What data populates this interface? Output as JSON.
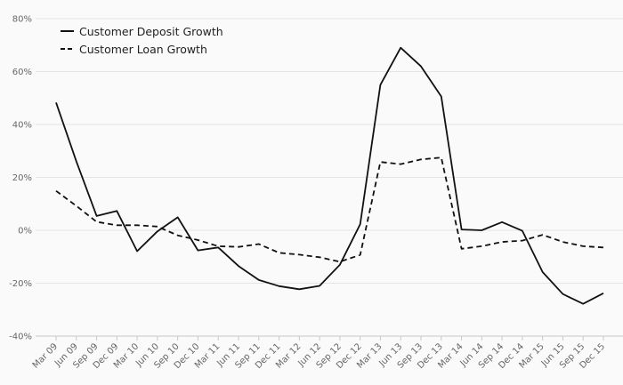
{
  "chart_data": {
    "type": "line",
    "title": "",
    "xlabel": "",
    "ylabel": "",
    "ylim": [
      -40,
      80
    ],
    "y_ticks": [
      "80%",
      "60%",
      "40%",
      "20%",
      "0%",
      "-20%",
      "-40%"
    ],
    "y_tick_values": [
      80,
      60,
      40,
      20,
      0,
      -20,
      -40
    ],
    "grid": true,
    "legend_position": "top-left",
    "categories": [
      "Mar 09",
      "Jun 09",
      "Sep 09",
      "Dec 09",
      "Mar 10",
      "Jun 10",
      "Sep 10",
      "Dec 10",
      "Mar 11",
      "Jun 11",
      "Sep 11",
      "Dec 11",
      "Mar 12",
      "Jun 12",
      "Sep 12",
      "Dec 12",
      "Mar 13",
      "Jun 13",
      "Sep 13",
      "Dec 13",
      "Mar 14",
      "Jun 14",
      "Sep 14",
      "Dec 14",
      "Mar 15",
      "Jun 15",
      "Sep 15",
      "Dec 15"
    ],
    "series": [
      {
        "name": "Customer Deposit Growth",
        "style": "solid",
        "color": "#111111",
        "values": [
          48.3,
          26.0,
          5.4,
          7.3,
          -7.9,
          -0.4,
          4.9,
          -7.6,
          -6.5,
          -13.5,
          -18.8,
          -21.1,
          -22.3,
          -21.0,
          -13.0,
          2.3,
          55.0,
          69.0,
          62.0,
          50.6,
          0.3,
          0.0,
          3.1,
          -0.2,
          -15.8,
          -24.1,
          -27.8,
          -23.8
        ]
      },
      {
        "name": "Customer Loan Growth",
        "style": "dashed",
        "color": "#111111",
        "values": [
          14.9,
          9.2,
          3.2,
          1.9,
          1.9,
          1.4,
          -1.9,
          -3.7,
          -6.0,
          -6.3,
          -5.2,
          -8.5,
          -9.2,
          -10.2,
          -11.9,
          -9.3,
          25.8,
          25.0,
          26.8,
          27.5,
          -7.0,
          -6.0,
          -4.4,
          -3.9,
          -1.7,
          -4.4,
          -6.0,
          -6.5
        ]
      }
    ]
  }
}
